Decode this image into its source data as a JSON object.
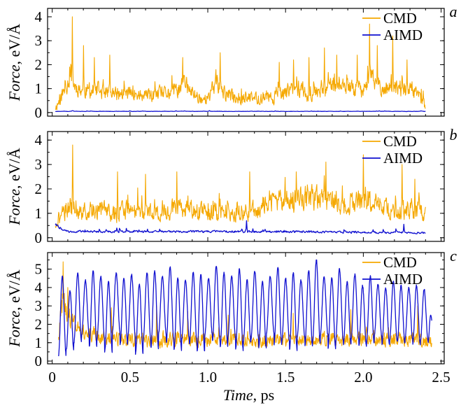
{
  "colors": {
    "cmd": "#f5a800",
    "aimd": "#1010d0",
    "axis": "#000000"
  },
  "xaxis": {
    "label_italic": "Time",
    "label_unit": ", ps",
    "range": [
      -0.03,
      2.52
    ],
    "ticks": [
      0,
      0.5,
      1.0,
      1.5,
      2.0,
      2.5
    ],
    "tick_labels": [
      "0",
      "0.5",
      "1.0",
      "1.5",
      "2.0",
      "2.5"
    ]
  },
  "chart_data": [
    {
      "type": "line",
      "panel_label": "a",
      "ylabel_italic": "Force",
      "ylabel_unit": ", eV/Å",
      "ylim": [
        -0.15,
        4.35
      ],
      "yticks": [
        0,
        1,
        2,
        3,
        4
      ],
      "ytick_labels": [
        "0",
        "1",
        "2",
        "3",
        "4"
      ],
      "legend_position": "top-right",
      "x_start": 0.02,
      "x_end": 2.4,
      "series": [
        {
          "name": "CMD",
          "color": "#f5a800",
          "profile": [
            [
              0.02,
              0.2
            ],
            [
              0.07,
              0.8
            ],
            [
              0.1,
              1.3
            ],
            [
              0.12,
              1.7
            ],
            [
              0.14,
              1.1
            ],
            [
              0.2,
              0.9
            ],
            [
              0.3,
              0.9
            ],
            [
              0.4,
              0.75
            ],
            [
              0.5,
              0.8
            ],
            [
              0.6,
              0.65
            ],
            [
              0.7,
              0.75
            ],
            [
              0.8,
              0.9
            ],
            [
              0.85,
              1.3
            ],
            [
              0.88,
              0.9
            ],
            [
              0.95,
              0.6
            ],
            [
              1.0,
              0.5
            ],
            [
              1.05,
              1.3
            ],
            [
              1.1,
              0.8
            ],
            [
              1.2,
              0.6
            ],
            [
              1.3,
              0.6
            ],
            [
              1.4,
              0.6
            ],
            [
              1.5,
              0.8
            ],
            [
              1.55,
              1.1
            ],
            [
              1.6,
              1.0
            ],
            [
              1.65,
              0.6
            ],
            [
              1.7,
              1.0
            ],
            [
              1.8,
              1.1
            ],
            [
              1.9,
              1.0
            ],
            [
              2.0,
              1.0
            ],
            [
              2.05,
              1.5
            ],
            [
              2.1,
              1.1
            ],
            [
              2.2,
              1.0
            ],
            [
              2.3,
              0.9
            ],
            [
              2.38,
              0.5
            ],
            [
              2.4,
              0.2
            ]
          ],
          "spikes": [
            [
              0.13,
              4.0
            ],
            [
              0.27,
              2.3
            ],
            [
              0.2,
              2.8
            ],
            [
              0.37,
              2.4
            ],
            [
              0.84,
              2.3
            ],
            [
              1.08,
              2.5
            ],
            [
              1.46,
              2.1
            ],
            [
              1.55,
              2.2
            ],
            [
              1.65,
              2.3
            ],
            [
              1.75,
              2.7
            ],
            [
              1.83,
              2.4
            ],
            [
              1.96,
              2.4
            ],
            [
              2.04,
              3.7
            ],
            [
              2.09,
              2.8
            ],
            [
              2.19,
              3.2
            ],
            [
              2.28,
              2.2
            ]
          ],
          "noise": 0.55,
          "n": 960,
          "seed": 11
        },
        {
          "name": "AIMD",
          "color": "#1010d0",
          "profile": [
            [
              0.02,
              0.05
            ],
            [
              2.4,
              0.05
            ]
          ],
          "spikes": [],
          "noise": 0.025,
          "n": 400,
          "seed": 12
        }
      ]
    },
    {
      "type": "line",
      "panel_label": "b",
      "ylabel_italic": "Force",
      "ylabel_unit": ", eV/Å",
      "ylim": [
        -0.15,
        4.35
      ],
      "yticks": [
        0,
        1,
        2,
        3,
        4
      ],
      "ytick_labels": [
        "0",
        "1",
        "2",
        "3",
        "4"
      ],
      "legend_position": "top-right",
      "x_start": 0.02,
      "x_end": 2.4,
      "series": [
        {
          "name": "CMD",
          "color": "#f5a800",
          "profile": [
            [
              0.02,
              0.6
            ],
            [
              0.1,
              1.3
            ],
            [
              0.2,
              1.0
            ],
            [
              0.3,
              1.2
            ],
            [
              0.4,
              1.0
            ],
            [
              0.5,
              1.1
            ],
            [
              0.6,
              1.1
            ],
            [
              0.7,
              1.0
            ],
            [
              0.8,
              1.2
            ],
            [
              0.9,
              1.1
            ],
            [
              1.0,
              1.0
            ],
            [
              1.1,
              1.1
            ],
            [
              1.2,
              1.0
            ],
            [
              1.3,
              1.1
            ],
            [
              1.4,
              1.5
            ],
            [
              1.5,
              1.5
            ],
            [
              1.6,
              1.6
            ],
            [
              1.7,
              1.7
            ],
            [
              1.8,
              1.4
            ],
            [
              1.9,
              1.3
            ],
            [
              2.0,
              1.5
            ],
            [
              2.1,
              1.3
            ],
            [
              2.2,
              1.0
            ],
            [
              2.3,
              1.2
            ],
            [
              2.4,
              1.0
            ]
          ],
          "spikes": [
            [
              0.13,
              3.8
            ],
            [
              0.42,
              2.7
            ],
            [
              0.6,
              2.6
            ],
            [
              0.8,
              2.7
            ],
            [
              1.27,
              2.7
            ],
            [
              1.57,
              2.7
            ],
            [
              1.76,
              3.1
            ],
            [
              2.0,
              3.4
            ],
            [
              2.25,
              3.0
            ],
            [
              2.33,
              2.4
            ]
          ],
          "noise": 0.6,
          "n": 900,
          "seed": 21
        },
        {
          "name": "AIMD",
          "color": "#1010d0",
          "profile": [
            [
              0.02,
              0.55
            ],
            [
              0.06,
              0.35
            ],
            [
              0.1,
              0.25
            ],
            [
              0.4,
              0.25
            ],
            [
              0.8,
              0.25
            ],
            [
              1.2,
              0.25
            ],
            [
              1.6,
              0.25
            ],
            [
              2.0,
              0.22
            ],
            [
              2.4,
              0.2
            ]
          ],
          "spikes": [
            [
              1.25,
              0.7
            ],
            [
              2.26,
              0.55
            ]
          ],
          "noise": 0.12,
          "n": 700,
          "seed": 22
        }
      ]
    },
    {
      "type": "line",
      "panel_label": "c",
      "ylabel_italic": "Force",
      "ylabel_unit": ", eV/Å",
      "ylim": [
        -0.15,
        5.9
      ],
      "yticks": [
        0,
        1,
        2,
        3,
        4,
        5
      ],
      "ytick_labels": [
        "0",
        "1",
        "2",
        "3",
        "4",
        "5"
      ],
      "legend_position": "top-right",
      "x_start": 0.04,
      "x_end": 2.44,
      "series": [
        {
          "name": "CMD",
          "color": "#f5a800",
          "profile": [
            [
              0.04,
              1.5
            ],
            [
              0.07,
              3.5
            ],
            [
              0.12,
              2.0
            ],
            [
              0.3,
              1.3
            ],
            [
              0.6,
              1.1
            ],
            [
              1.0,
              1.2
            ],
            [
              1.4,
              1.1
            ],
            [
              1.8,
              1.2
            ],
            [
              2.2,
              1.2
            ],
            [
              2.44,
              1.0
            ]
          ],
          "spikes": [
            [
              0.07,
              5.4
            ],
            [
              0.1,
              4.0
            ],
            [
              0.38,
              2.9
            ],
            [
              0.67,
              3.0
            ],
            [
              0.87,
              2.7
            ],
            [
              1.13,
              2.5
            ],
            [
              1.55,
              2.6
            ],
            [
              1.92,
              2.8
            ],
            [
              2.35,
              3.0
            ]
          ],
          "noise": 0.55,
          "n": 960,
          "seed": 31
        },
        {
          "name": "AIMD",
          "color": "#1010d0",
          "oscillation": {
            "period": 0.0495,
            "low": [
              0.3,
              0.6,
              1.0,
              1.4,
              0.8,
              1.2,
              0.5,
              1.6,
              0.9,
              1.3,
              0.4,
              1.1,
              0.7,
              1.5,
              1.0,
              0.6,
              1.2,
              0.9,
              0.5,
              1.4,
              1.1,
              0.8,
              1.3,
              0.6,
              1.0,
              1.2,
              0.7,
              1.5,
              0.9,
              1.1,
              0.6,
              1.3,
              0.8,
              1.0,
              1.4,
              0.7,
              1.1,
              0.9,
              1.2,
              0.8,
              1.0,
              1.3,
              0.9,
              1.1,
              1.0,
              1.2,
              0.9,
              1.1,
              1.0,
              1.0
            ],
            "high": [
              4.6,
              3.8,
              4.8,
              4.4,
              4.9,
              4.6,
              4.3,
              4.8,
              4.5,
              4.7,
              4.2,
              4.8,
              4.9,
              4.6,
              5.1,
              4.5,
              4.4,
              4.8,
              4.7,
              4.5,
              5.2,
              4.8,
              4.6,
              5.0,
              4.4,
              4.9,
              4.3,
              4.6,
              5.1,
              4.5,
              4.8,
              4.4,
              4.9,
              5.5,
              4.6,
              4.5,
              5.0,
              4.3,
              4.7,
              4.1,
              4.6,
              4.2,
              4.0,
              4.3,
              4.1,
              4.0,
              4.1,
              3.9,
              3.6,
              3.0
            ],
            "end_value": 2.2
          },
          "n": 1600,
          "seed": 32
        }
      ]
    }
  ]
}
